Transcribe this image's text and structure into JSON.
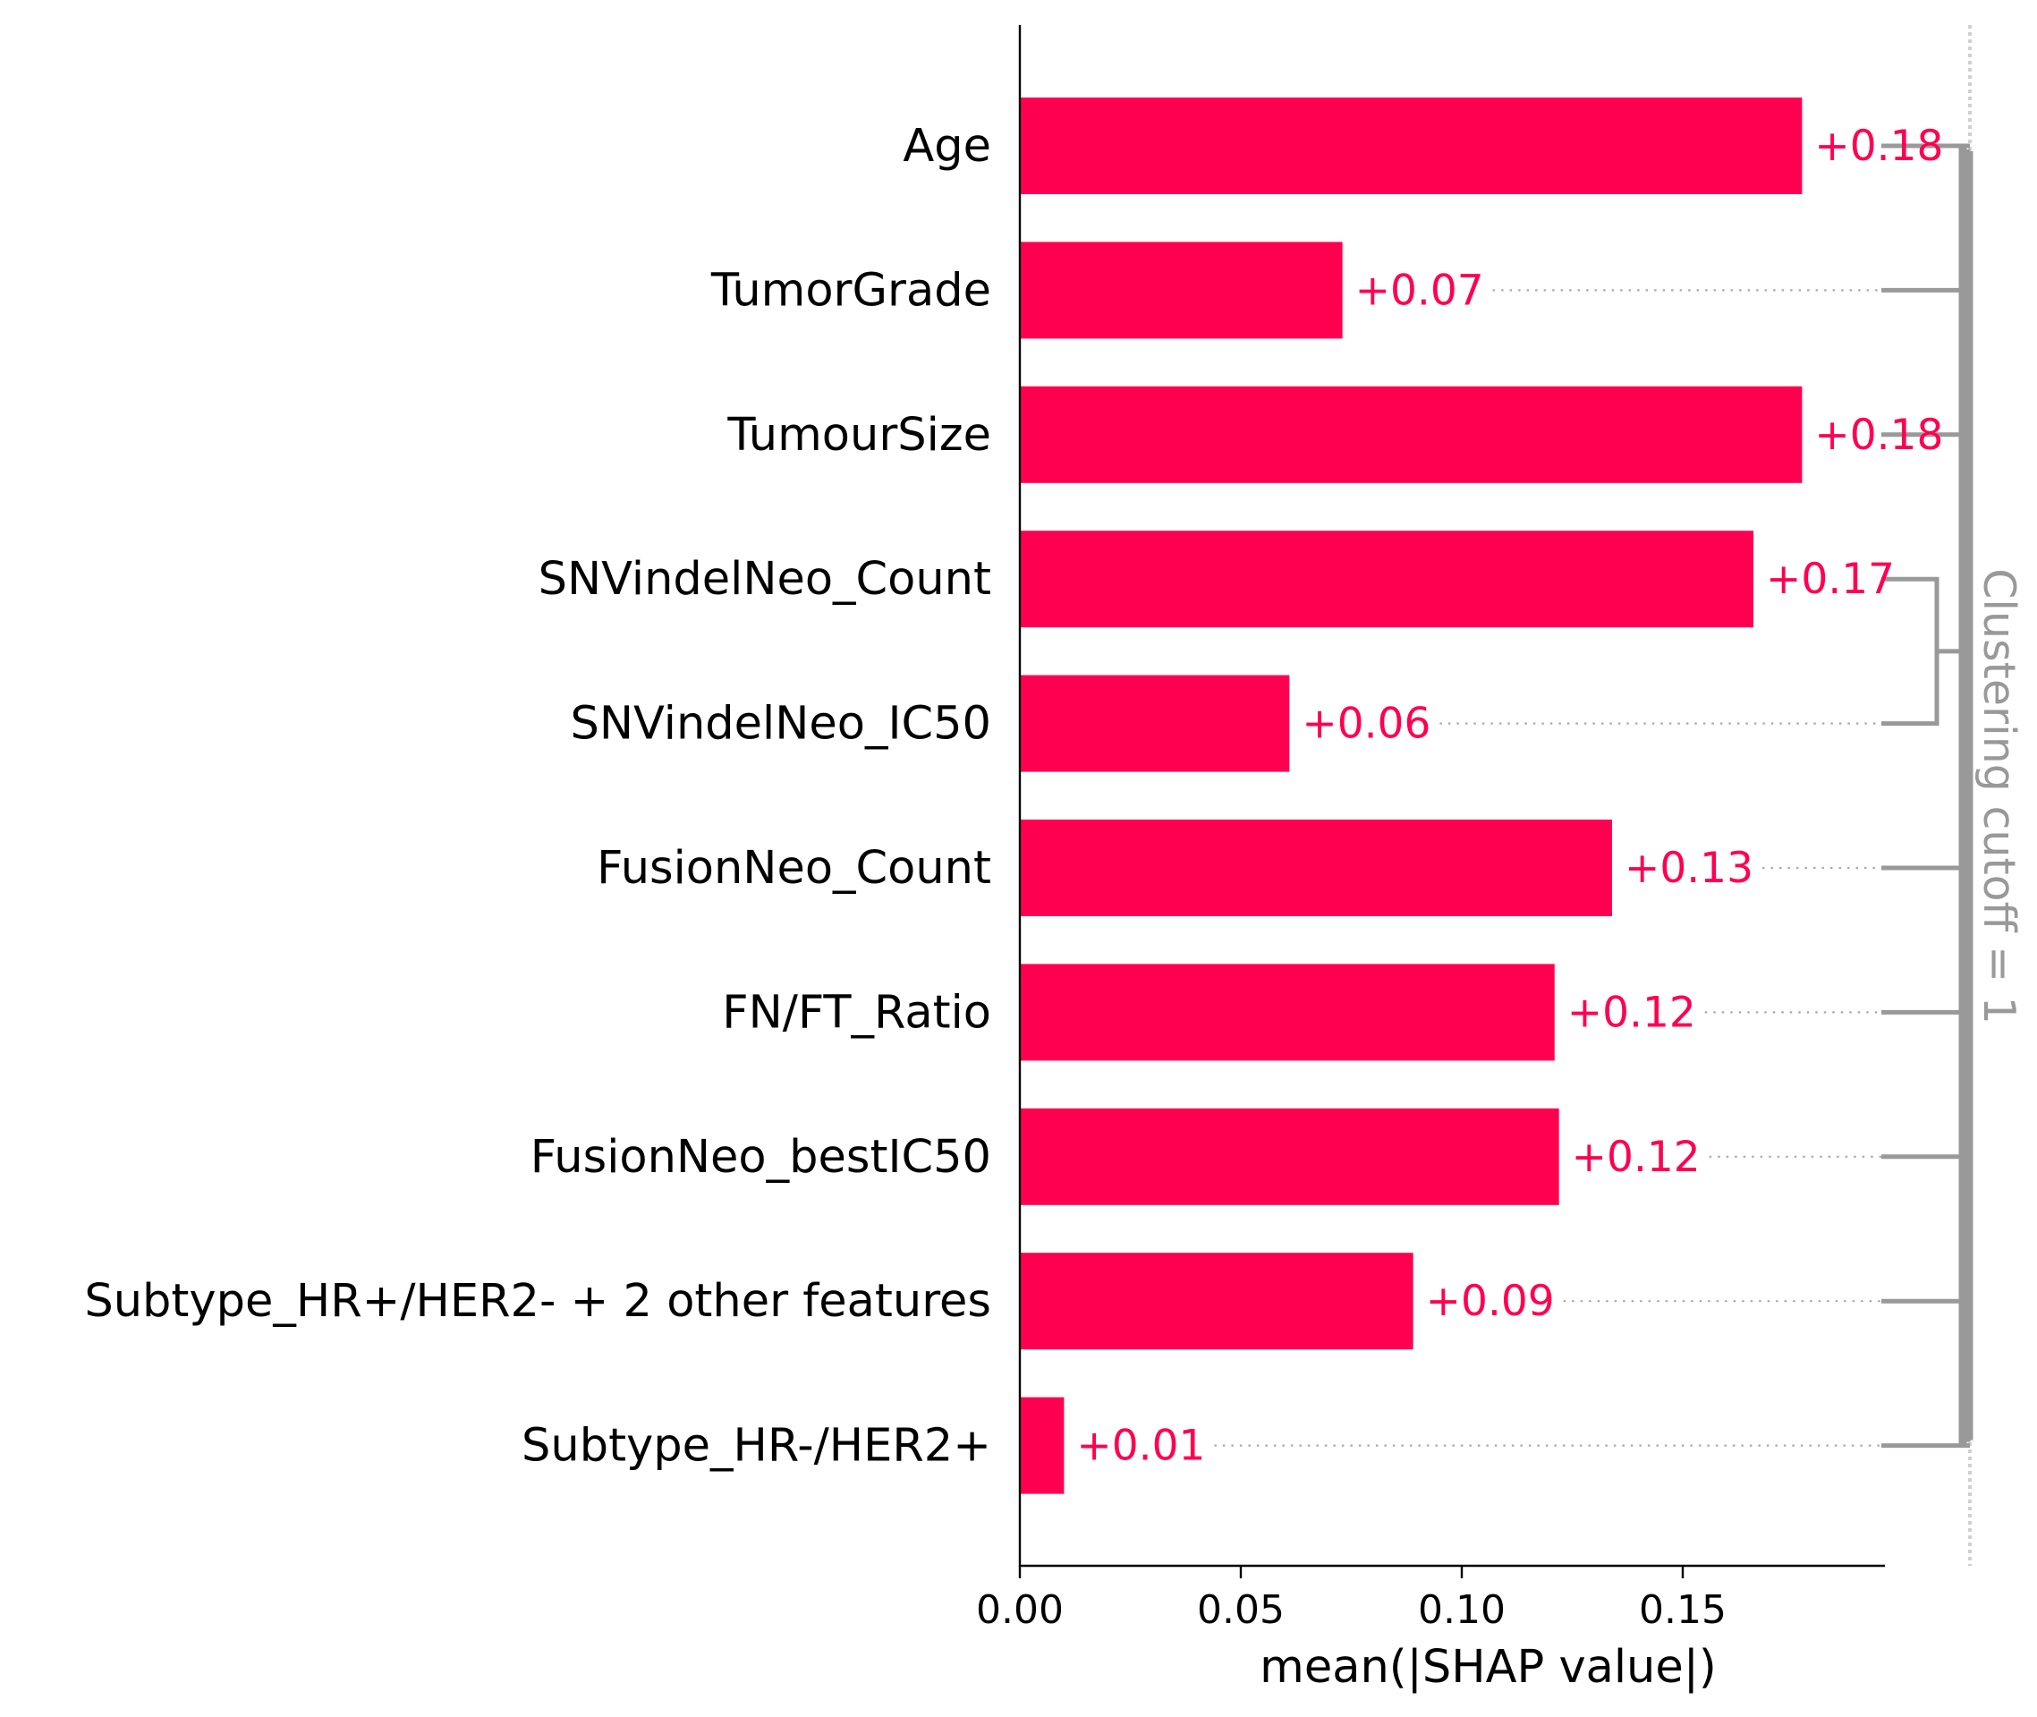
{
  "chart_data": {
    "type": "bar",
    "orientation": "horizontal",
    "xlabel": "mean(|SHAP value|)",
    "xlim": [
      0,
      0.195
    ],
    "xticks": [
      "0.00",
      "0.05",
      "0.10",
      "0.15"
    ],
    "xtick_values": [
      0,
      0.05,
      0.1,
      0.15
    ],
    "categories": [
      "Age",
      "TumorGrade",
      "TumourSize",
      "SNVindelNeo_Count",
      "SNVindelNeo_IC50",
      "FusionNeo_Count",
      "FN/FT_Ratio",
      "FusionNeo_bestIC50",
      "Subtype_HR+/HER2- + 2 other features",
      "Subtype_HR-/HER2+"
    ],
    "values": [
      0.177,
      0.073,
      0.177,
      0.166,
      0.061,
      0.134,
      0.121,
      0.122,
      0.089,
      0.01
    ],
    "value_labels": [
      "+0.18",
      "+0.07",
      "+0.18",
      "+0.17",
      "+0.06",
      "+0.13",
      "+0.12",
      "+0.12",
      "+0.09",
      "+0.01"
    ],
    "clustering": {
      "label": "Clustering cutoff = 1",
      "pairs": [
        [
          3,
          4
        ]
      ]
    },
    "colors": {
      "bar": "#ff0051",
      "value_text": "#ff0051",
      "dendrogram": "#999999",
      "cutoff_line": "#d0d0d0",
      "cutoff_text": "#999999",
      "axis": "#000000"
    }
  }
}
